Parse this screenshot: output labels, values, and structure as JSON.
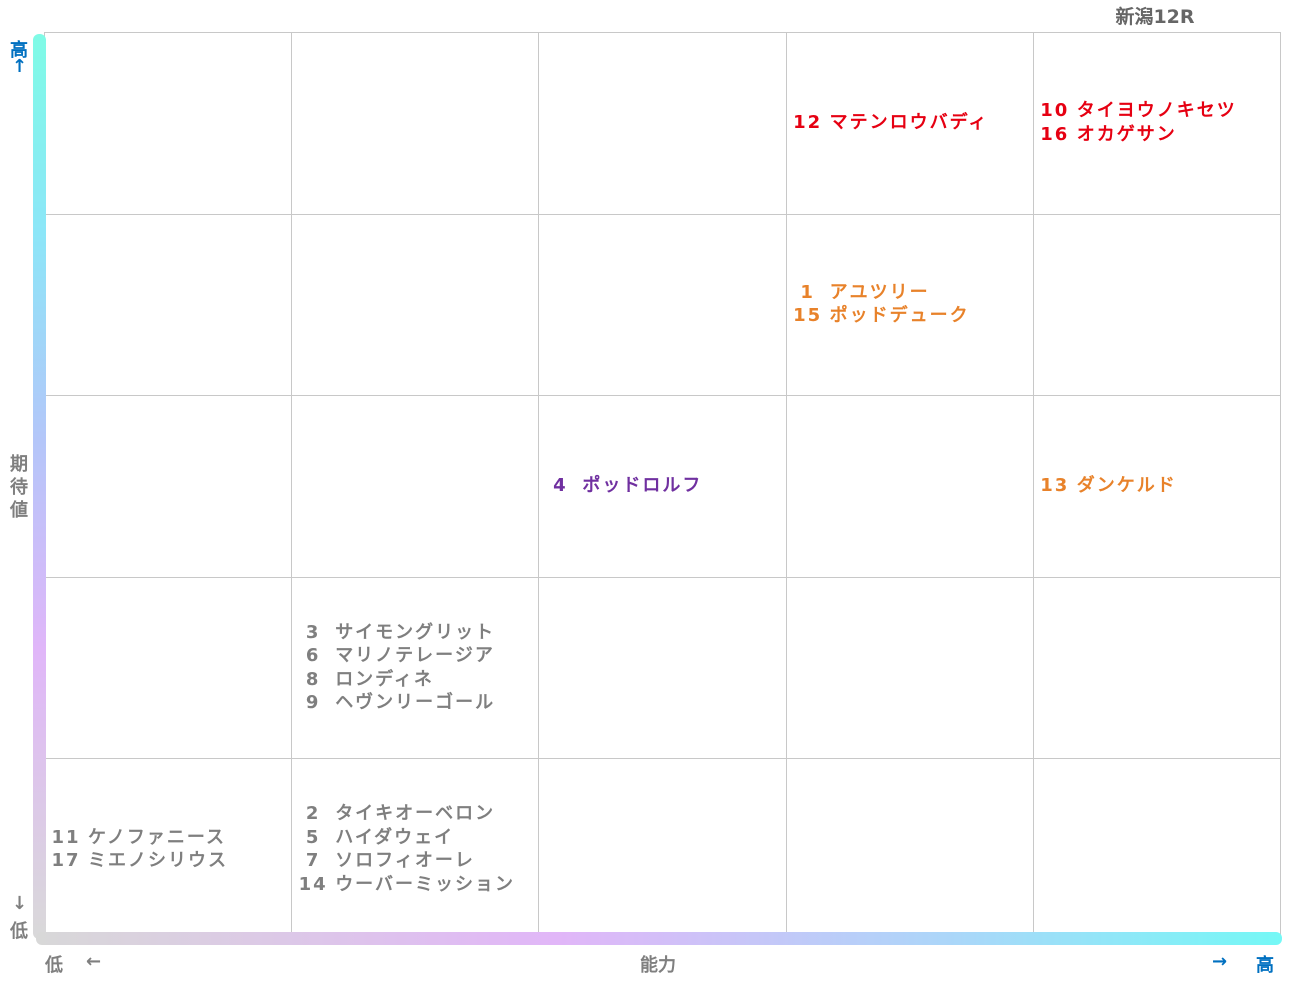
{
  "race_label": "新潟12R",
  "colors": {
    "red": "#e60012",
    "orange": "#e8822a",
    "purple": "#7030a0",
    "gray": "#7f7f7f",
    "axis_high": "#0070c0"
  },
  "axes": {
    "y_title": "期待値",
    "y_high": "高",
    "y_high_arrow": "↑",
    "y_low_arrow": "↓",
    "y_low": "低",
    "x_title": "能力",
    "x_low": "低",
    "x_low_arrow": "←",
    "x_high_arrow": "→",
    "x_high": "高"
  },
  "chart_data": {
    "type": "table",
    "x_axis": "能力",
    "y_axis": "期待値",
    "columns": 5,
    "rows": 5,
    "cells": [
      {
        "col": 4,
        "row": 5,
        "color": "red",
        "horses": [
          {
            "num": "12",
            "name": "マテンロウバディ"
          }
        ]
      },
      {
        "col": 5,
        "row": 5,
        "color": "red",
        "horses": [
          {
            "num": "10",
            "name": "タイヨウノキセツ"
          },
          {
            "num": "16",
            "name": "オカゲサン"
          }
        ]
      },
      {
        "col": 4,
        "row": 4,
        "color": "orange",
        "horses": [
          {
            "num": "1",
            "name": "アユツリー"
          },
          {
            "num": "15",
            "name": "ポッドデューク"
          }
        ]
      },
      {
        "col": 3,
        "row": 3,
        "color": "purple",
        "horses": [
          {
            "num": "4",
            "name": "ポッドロルフ"
          }
        ]
      },
      {
        "col": 5,
        "row": 3,
        "color": "orange",
        "horses": [
          {
            "num": "13",
            "name": "ダンケルド"
          }
        ]
      },
      {
        "col": 2,
        "row": 2,
        "color": "gray",
        "horses": [
          {
            "num": "3",
            "name": "サイモングリット"
          },
          {
            "num": "6",
            "name": "マリノテレージア"
          },
          {
            "num": "8",
            "name": "ロンディネ"
          },
          {
            "num": "9",
            "name": "ヘヴンリーゴール"
          }
        ]
      },
      {
        "col": 1,
        "row": 1,
        "color": "gray",
        "horses": [
          {
            "num": "11",
            "name": "ケノファニース"
          },
          {
            "num": "17",
            "name": "ミエノシリウス"
          }
        ]
      },
      {
        "col": 2,
        "row": 1,
        "color": "gray",
        "horses": [
          {
            "num": "2",
            "name": "タイキオーベロン"
          },
          {
            "num": "5",
            "name": "ハイダウェイ"
          },
          {
            "num": "7",
            "name": "ソロフィオーレ"
          },
          {
            "num": "14",
            "name": "ウーバーミッション"
          }
        ]
      }
    ]
  }
}
